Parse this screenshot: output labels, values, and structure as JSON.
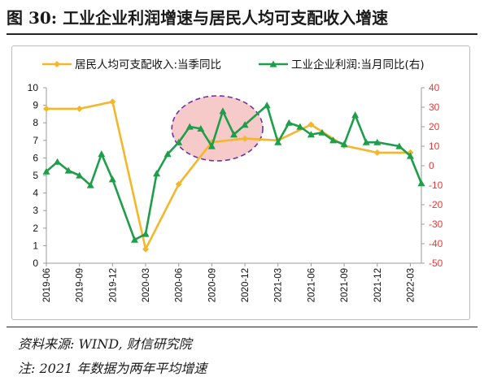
{
  "title": "图 30:  工业企业利润增速与居民人均可支配收入增速",
  "footer": {
    "source": "资料来源: WIND, 财信研究院",
    "note": "注: 2021 年数据为两年平均增速"
  },
  "colors": {
    "income": "#F4B62A",
    "profit": "#1E9E4A",
    "right_axis": "#E8393A",
    "highlight_fill": "#F4B8B8",
    "highlight_stroke": "#7030A0"
  },
  "chart_data": {
    "type": "line",
    "legend_position": "top",
    "grid": false,
    "x_tick_labels": [
      "2019-06",
      "2019-09",
      "2019-12",
      "2020-03",
      "2020-06",
      "2020-09",
      "2020-12",
      "2021-03",
      "2021-06",
      "2021-09",
      "2021-12",
      "2022-03"
    ],
    "left_axis": {
      "ylim": [
        0,
        10
      ],
      "ticks": [
        0,
        1,
        2,
        3,
        4,
        5,
        6,
        7,
        8,
        9,
        10
      ]
    },
    "right_axis": {
      "ylim": [
        -50,
        40
      ],
      "ticks": [
        40,
        30,
        20,
        10,
        0,
        -10,
        -20,
        -30,
        -40,
        -50
      ]
    },
    "series": [
      {
        "name": "居民人均可支配收入:当季同比",
        "axis": "left",
        "marker": "diamond",
        "x": [
          "2019-06",
          "2019-09",
          "2019-12",
          "2020-03",
          "2020-06",
          "2020-09",
          "2020-12",
          "2021-03",
          "2021-06",
          "2021-09",
          "2021-12",
          "2022-03"
        ],
        "values": [
          8.8,
          8.8,
          9.2,
          0.8,
          4.5,
          6.9,
          7.1,
          7.0,
          7.9,
          6.7,
          6.3,
          6.3
        ]
      },
      {
        "name": "工业企业利润:当月同比(右)",
        "axis": "right",
        "marker": "triangle",
        "x": [
          "2019-06",
          "2019-07",
          "2019-08",
          "2019-09",
          "2019-10",
          "2019-11",
          "2019-12",
          "2020-02",
          "2020-03",
          "2020-04",
          "2020-05",
          "2020-06",
          "2020-07",
          "2020-08",
          "2020-09",
          "2020-10",
          "2020-11",
          "2020-12",
          "2021-02",
          "2021-03",
          "2021-04",
          "2021-05",
          "2021-06",
          "2021-07",
          "2021-08",
          "2021-09",
          "2021-10",
          "2021-11",
          "2021-12",
          "2022-02",
          "2022-03",
          "2022-04"
        ],
        "values": [
          -3,
          2,
          -2.5,
          -5,
          -10,
          6,
          -7,
          -38,
          -35,
          -4,
          6,
          12,
          20,
          19,
          10,
          28,
          16,
          21,
          31,
          12,
          22,
          20,
          16,
          17,
          13,
          11,
          26,
          12,
          12,
          10,
          5,
          -9
        ]
      }
    ],
    "annotation": {
      "type": "ellipse",
      "label": "",
      "from": "2020-07",
      "to": "2020-12"
    }
  }
}
